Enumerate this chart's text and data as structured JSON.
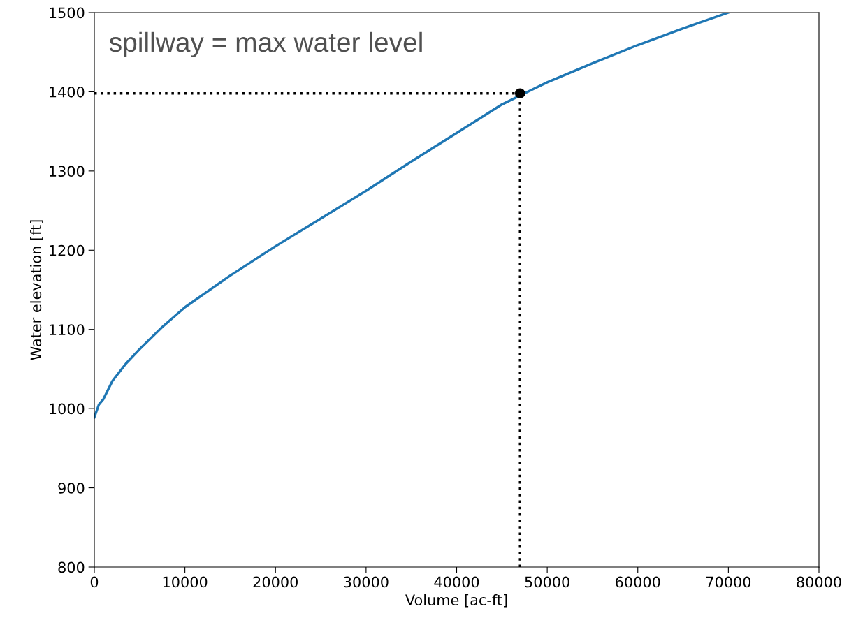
{
  "chart_data": {
    "type": "line",
    "xlabel": "Volume [ac-ft]",
    "ylabel": "Water elevation [ft]",
    "xlim": [
      0,
      80000
    ],
    "ylim": [
      800,
      1500
    ],
    "xticks": [
      0,
      10000,
      20000,
      30000,
      40000,
      50000,
      60000,
      70000,
      80000
    ],
    "yticks": [
      800,
      900,
      1000,
      1100,
      1200,
      1300,
      1400,
      1500
    ],
    "grid": false,
    "legend": false,
    "series": [
      {
        "color": "#1f77b4",
        "line_style": "solid",
        "marker": "none",
        "x": [
          0,
          500,
          1000,
          2000,
          3500,
          5000,
          7500,
          10000,
          15000,
          20000,
          25000,
          30000,
          35000,
          40000,
          45000,
          50000,
          55000,
          60000,
          65000,
          70000
        ],
        "values": [
          989,
          1005,
          1012,
          1035,
          1057,
          1075,
          1103,
          1128,
          1168,
          1205,
          1240,
          1275,
          1312,
          1348,
          1384,
          1412,
          1436,
          1459,
          1480,
          1500
        ]
      },
      {
        "color": "#000000",
        "line_style": "dotted",
        "marker": "none",
        "x": [
          0,
          47000
        ],
        "values": [
          1398,
          1398
        ]
      },
      {
        "color": "#000000",
        "line_style": "dotted",
        "marker": "none",
        "x": [
          47000,
          47000
        ],
        "values": [
          800,
          1398
        ]
      },
      {
        "type": "scatter",
        "color": "#000000",
        "marker": "circle",
        "x": [
          47000
        ],
        "values": [
          1398
        ]
      }
    ],
    "annotations": [
      "spillway = max water level"
    ]
  }
}
